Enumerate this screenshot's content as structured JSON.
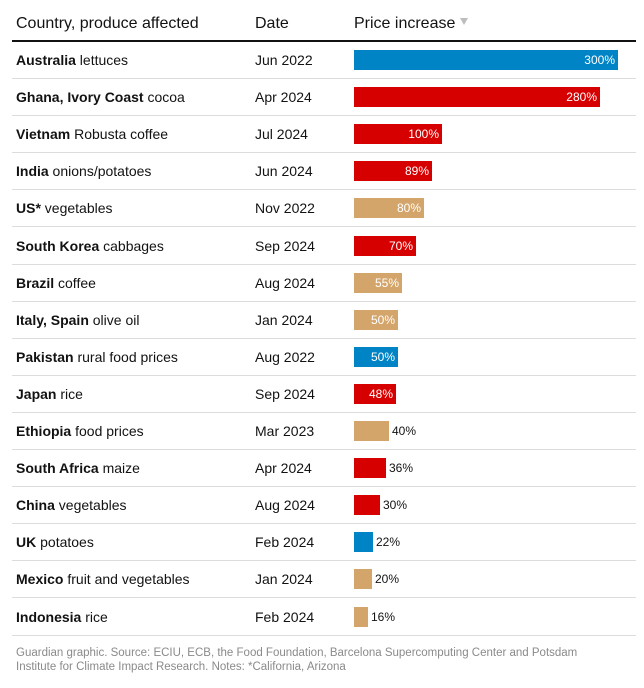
{
  "header": {
    "country": "Country, produce affected",
    "date": "Date",
    "price": "Price increase"
  },
  "chart_data": {
    "type": "table",
    "value_max": 300,
    "rows": [
      {
        "country": "Australia",
        "produce": "lettuces",
        "date": "Jun 2022",
        "value": 300,
        "label": "300%",
        "color": "#0084c6"
      },
      {
        "country": "Ghana, Ivory Coast",
        "produce": "cocoa",
        "date": "Apr 2024",
        "value": 280,
        "label": "280%",
        "color": "#d60000"
      },
      {
        "country": "Vietnam",
        "produce": "Robusta coffee",
        "date": "Jul 2024",
        "value": 100,
        "label": "100%",
        "color": "#d60000"
      },
      {
        "country": "India",
        "produce": "onions/potatoes",
        "date": "Jun 2024",
        "value": 89,
        "label": "89%",
        "color": "#d60000"
      },
      {
        "country": "US*",
        "produce": "vegetables",
        "date": "Nov 2022",
        "value": 80,
        "label": "80%",
        "color": "#d4a56a"
      },
      {
        "country": "South Korea",
        "produce": "cabbages",
        "date": "Sep 2024",
        "value": 70,
        "label": "70%",
        "color": "#d60000"
      },
      {
        "country": "Brazil",
        "produce": "coffee",
        "date": "Aug 2024",
        "value": 55,
        "label": "55%",
        "color": "#d4a56a"
      },
      {
        "country": "Italy, Spain",
        "produce": "olive oil",
        "date": "Jan 2024",
        "value": 50,
        "label": "50%",
        "color": "#d4a56a"
      },
      {
        "country": "Pakistan",
        "produce": "rural food prices",
        "date": "Aug 2022",
        "value": 50,
        "label": "50%",
        "color": "#0084c6"
      },
      {
        "country": "Japan",
        "produce": "rice",
        "date": "Sep 2024",
        "value": 48,
        "label": "48%",
        "color": "#d60000"
      },
      {
        "country": "Ethiopia",
        "produce": "food prices",
        "date": "Mar 2023",
        "value": 40,
        "label": "40%",
        "color": "#d4a56a"
      },
      {
        "country": "South Africa",
        "produce": "maize",
        "date": "Apr 2024",
        "value": 36,
        "label": "36%",
        "color": "#d60000"
      },
      {
        "country": "China",
        "produce": "vegetables",
        "date": "Aug 2024",
        "value": 30,
        "label": "30%",
        "color": "#d60000"
      },
      {
        "country": "UK",
        "produce": "potatoes",
        "date": "Feb 2024",
        "value": 22,
        "label": "22%",
        "color": "#0084c6"
      },
      {
        "country": "Mexico",
        "produce": "fruit and vegetables",
        "date": "Jan 2024",
        "value": 20,
        "label": "20%",
        "color": "#d4a56a"
      },
      {
        "country": "Indonesia",
        "produce": "rice",
        "date": "Feb 2024",
        "value": 16,
        "label": "16%",
        "color": "#d4a56a"
      }
    ]
  },
  "footer": {
    "source": "Guardian graphic. Source: ECIU, ECB, the Food Foundation, Barcelona Supercomputing Center and Potsdam Institute for Climate Impact Research. Notes: *California, Arizona"
  }
}
